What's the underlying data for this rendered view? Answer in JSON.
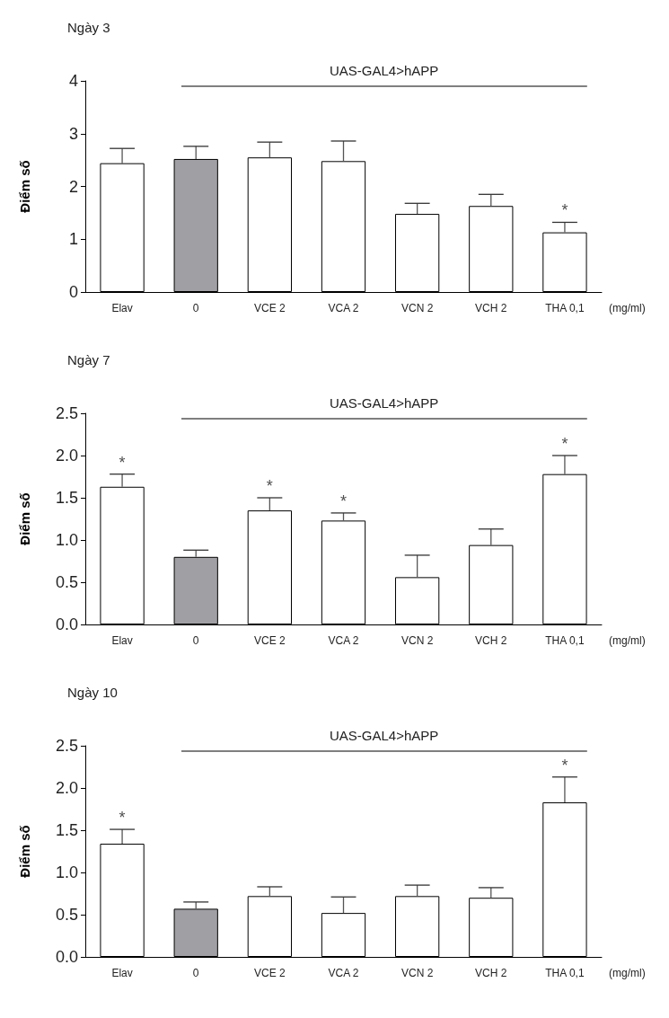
{
  "chart_data": [
    {
      "type": "bar",
      "title": "Ngày 3",
      "ylabel": "Điểm số",
      "xlabel": "(mg/ml)",
      "categories": [
        "Elav",
        "0",
        "VCE 2",
        "VCA 2",
        "VCN 2",
        "VCH 2",
        "THA 0,1"
      ],
      "values": [
        2.44,
        2.52,
        2.55,
        2.48,
        1.48,
        1.63,
        1.13
      ],
      "colors": [
        "#ffffff",
        "#a0a0a4",
        "#ffffff",
        "#ffffff",
        "#ffffff",
        "#ffffff",
        "#ffffff"
      ],
      "errors": [
        [
          2.44,
          2.72
        ],
        [
          2.52,
          2.76
        ],
        [
          2.55,
          2.84
        ],
        [
          2.48,
          2.86
        ],
        [
          1.48,
          1.68
        ],
        [
          1.63,
          1.85
        ],
        [
          1.13,
          1.32
        ]
      ],
      "ylim": [
        0,
        4
      ],
      "yticks": [
        0,
        1,
        2,
        3,
        4
      ],
      "grid": false,
      "annotations": [
        "UAS-GAL4>hAPP",
        {
          "text": "*",
          "x": "THA 0,1",
          "y": 1.32
        }
      ]
    },
    {
      "type": "bar",
      "title": "Ngày 7",
      "ylabel": "Điểm số",
      "xlabel": "(mg/ml)",
      "categories": [
        "Elav",
        "0",
        "VCE 2",
        "VCA 2",
        "VCN 2",
        "VCH 2",
        "THA 0,1"
      ],
      "values": [
        1.63,
        0.8,
        1.35,
        1.23,
        0.56,
        0.94,
        1.78
      ],
      "colors": [
        "#ffffff",
        "#a0a0a4",
        "#ffffff",
        "#ffffff",
        "#ffffff",
        "#ffffff",
        "#ffffff"
      ],
      "errors": [
        [
          1.63,
          1.78
        ],
        [
          0.8,
          0.88
        ],
        [
          1.35,
          1.5
        ],
        [
          1.23,
          1.32
        ],
        [
          0.56,
          0.82
        ],
        [
          0.94,
          1.13
        ],
        [
          1.78,
          2.0
        ]
      ],
      "ylim": [
        0,
        2.5
      ],
      "yticks": [
        {
          "value": 0,
          "label": "0.0"
        },
        {
          "value": 0.5,
          "label": "0.5"
        },
        {
          "value": 1,
          "label": "1.0"
        },
        {
          "value": 1.5,
          "label": "1.5"
        },
        {
          "value": 2,
          "label": "2.0"
        },
        {
          "value": 2.5,
          "label": "2.5"
        }
      ],
      "grid": false,
      "annotations": [
        "UAS-GAL4>hAPP",
        {
          "text": "*",
          "x": "Elav",
          "y": 1.78
        },
        {
          "text": "*",
          "x": "VCE 2",
          "y": 1.5
        },
        {
          "text": "*",
          "x": "VCA 2",
          "y": 1.32
        },
        {
          "text": "*",
          "x": "THA 0,1",
          "y": 2.0
        }
      ]
    },
    {
      "type": "bar",
      "title": "Ngày 10",
      "ylabel": "Điểm số",
      "xlabel": "(mg/ml)",
      "categories": [
        "Elav",
        "0",
        "VCE 2",
        "VCA 2",
        "VCN 2",
        "VCH 2",
        "THA 0,1"
      ],
      "values": [
        1.34,
        0.57,
        0.72,
        0.52,
        0.72,
        0.7,
        1.83
      ],
      "colors": [
        "#ffffff",
        "#a0a0a4",
        "#ffffff",
        "#ffffff",
        "#ffffff",
        "#ffffff",
        "#ffffff"
      ],
      "errors": [
        [
          1.34,
          1.51
        ],
        [
          0.57,
          0.65
        ],
        [
          0.72,
          0.83
        ],
        [
          0.52,
          0.71
        ],
        [
          0.72,
          0.85
        ],
        [
          0.7,
          0.82
        ],
        [
          1.83,
          2.13
        ]
      ],
      "ylim": [
        0,
        2.5
      ],
      "yticks": [
        {
          "value": 0,
          "label": "0.0"
        },
        {
          "value": 0.5,
          "label": "0.5"
        },
        {
          "value": 1,
          "label": "1.0"
        },
        {
          "value": 1.5,
          "label": "1.5"
        },
        {
          "value": 2,
          "label": "2.0"
        },
        {
          "value": 2.5,
          "label": "2.5"
        }
      ],
      "grid": false,
      "annotations": [
        "UAS-GAL4>hAPP",
        {
          "text": "*",
          "x": "Elav",
          "y": 1.51
        },
        {
          "text": "*",
          "x": "THA 0,1",
          "y": 2.13
        }
      ]
    }
  ]
}
